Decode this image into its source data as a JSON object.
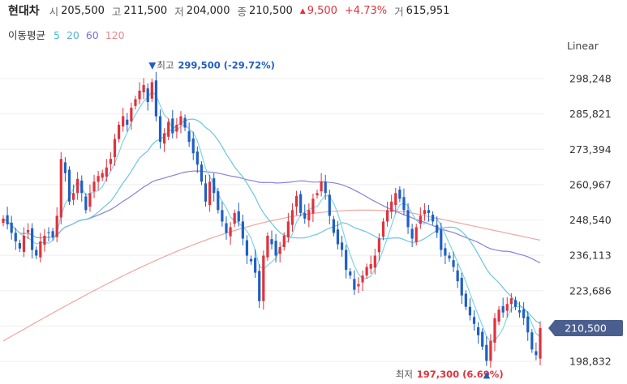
{
  "header": {
    "stock_name": "현대차",
    "open_label": "시",
    "open": "205,500",
    "high_label": "고",
    "high": "211,500",
    "low_label": "저",
    "low": "204,000",
    "close_label": "종",
    "close": "210,500",
    "change": "9,500",
    "change_pct": "+4.73%",
    "volume_label": "거",
    "volume": "615,951",
    "up_color": "#e0323c"
  },
  "ma_legend": {
    "title": "이동평균",
    "periods": [
      {
        "label": "5",
        "color": "#3bbfd3"
      },
      {
        "label": "20",
        "color": "#5ab0d8"
      },
      {
        "label": "60",
        "color": "#7b6ed8"
      },
      {
        "label": "120",
        "color": "#e78a8a"
      }
    ]
  },
  "scale_mode": "Linear",
  "chart_data": {
    "type": "candlestick",
    "y_ticks": [
      "298,248",
      "285,821",
      "273,394",
      "260,967",
      "248,540",
      "236,113",
      "223,686",
      "198,832"
    ],
    "y_tick_values": [
      298248,
      285821,
      273394,
      260967,
      248540,
      236113,
      223686,
      198832
    ],
    "current_price_label": "210,500",
    "current_price": 210500,
    "ylim": [
      196000,
      302000
    ],
    "high_annotation": {
      "label": "최고",
      "value": "299,500",
      "pct": "(-29.72%)",
      "price": 299500,
      "index": 36
    },
    "low_annotation": {
      "label": "최저",
      "value": "197,300",
      "pct": "(6.69%)",
      "price": 197300,
      "index": 117
    },
    "up_color": "#e0323c",
    "down_color": "#1f5fc4",
    "closes": [
      249000,
      247000,
      244000,
      241000,
      238500,
      243000,
      245000,
      238000,
      236000,
      241000,
      243000,
      244000,
      242500,
      250000,
      270000,
      265000,
      255000,
      258000,
      263000,
      258000,
      252000,
      258000,
      262000,
      264000,
      265000,
      267000,
      270000,
      277000,
      282000,
      285000,
      282000,
      288000,
      291000,
      294000,
      296000,
      290000,
      297000,
      285000,
      276000,
      279000,
      283000,
      279000,
      282000,
      285000,
      281000,
      276000,
      272000,
      268000,
      262000,
      255000,
      262000,
      258000,
      252000,
      248000,
      244000,
      246000,
      251000,
      248000,
      242000,
      236000,
      234000,
      230000,
      220000,
      236000,
      243000,
      240000,
      236000,
      239000,
      243000,
      248000,
      252000,
      257000,
      251000,
      249000,
      252000,
      256000,
      258000,
      262000,
      258000,
      250000,
      244000,
      240000,
      238000,
      231000,
      229000,
      224000,
      226000,
      229000,
      232000,
      233000,
      236000,
      242000,
      248000,
      252000,
      255000,
      258000,
      256000,
      252000,
      246000,
      242000,
      246000,
      250000,
      252000,
      251000,
      248000,
      244000,
      238000,
      236000,
      235000,
      232000,
      227000,
      222000,
      218000,
      215000,
      212000,
      208000,
      204000,
      199000,
      206000,
      214000,
      217000,
      216000,
      219000,
      221000,
      218000,
      216000,
      214000,
      209000,
      203000,
      201000,
      210500
    ]
  }
}
